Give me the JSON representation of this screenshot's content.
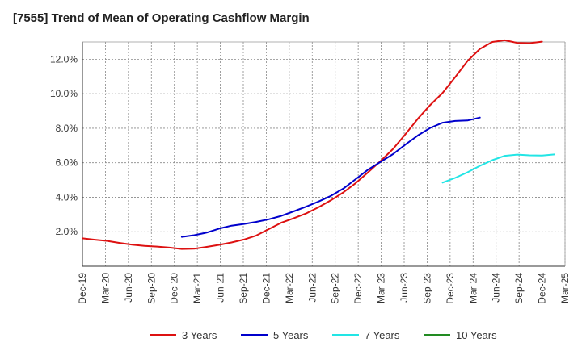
{
  "chart_data": {
    "type": "line",
    "title": "[7555]  Trend of Mean of Operating Cashflow Margin",
    "xlabel": "",
    "ylabel": "",
    "x_ticks": [
      "Dec-19",
      "Mar-20",
      "Jun-20",
      "Sep-20",
      "Dec-20",
      "Mar-21",
      "Jun-21",
      "Sep-21",
      "Dec-21",
      "Mar-22",
      "Jun-22",
      "Sep-22",
      "Dec-22",
      "Mar-23",
      "Jun-23",
      "Sep-23",
      "Dec-23",
      "Mar-24",
      "Jun-24",
      "Sep-24",
      "Dec-24",
      "Mar-25"
    ],
    "y_ticks": [
      2.0,
      4.0,
      6.0,
      8.0,
      10.0,
      12.0
    ],
    "y_tick_labels": [
      "2.0%",
      "4.0%",
      "6.0%",
      "8.0%",
      "10.0%",
      "12.0%"
    ],
    "ylim": [
      0.0,
      13.0
    ],
    "grid": true,
    "legend_position": "bottom",
    "series": [
      {
        "name": "3 Years",
        "color": "#dd1111",
        "start_index": 0,
        "values": [
          1.62,
          1.54,
          1.47,
          1.35,
          1.25,
          1.18,
          1.14,
          1.08,
          1.0,
          1.02,
          1.12,
          1.24,
          1.38,
          1.55,
          1.78,
          2.15,
          2.52,
          2.78,
          3.06,
          3.42,
          3.82,
          4.28,
          4.82,
          5.45,
          6.1,
          6.8,
          7.65,
          8.55,
          9.35,
          10.05,
          10.95,
          11.9,
          12.6,
          13.0,
          13.1,
          12.95,
          12.93,
          13.02
        ]
      },
      {
        "name": "5 Years",
        "color": "#0000cc",
        "start_index": 8,
        "values": [
          1.7,
          1.8,
          1.95,
          2.18,
          2.35,
          2.45,
          2.57,
          2.72,
          2.92,
          3.18,
          3.45,
          3.75,
          4.08,
          4.5,
          5.05,
          5.6,
          6.05,
          6.5,
          7.05,
          7.58,
          8.02,
          8.32,
          8.42,
          8.45,
          8.62
        ],
        "offset_note": ""
      },
      {
        "name": "7 Years",
        "color": "#22e5e5",
        "start_index": 29,
        "values": [
          4.85,
          5.12,
          5.45,
          5.82,
          6.15,
          6.4,
          6.47,
          6.43,
          6.42,
          6.48
        ]
      },
      {
        "name": "10 Years",
        "color": "#228b22",
        "start_index": 0,
        "values": []
      }
    ]
  }
}
